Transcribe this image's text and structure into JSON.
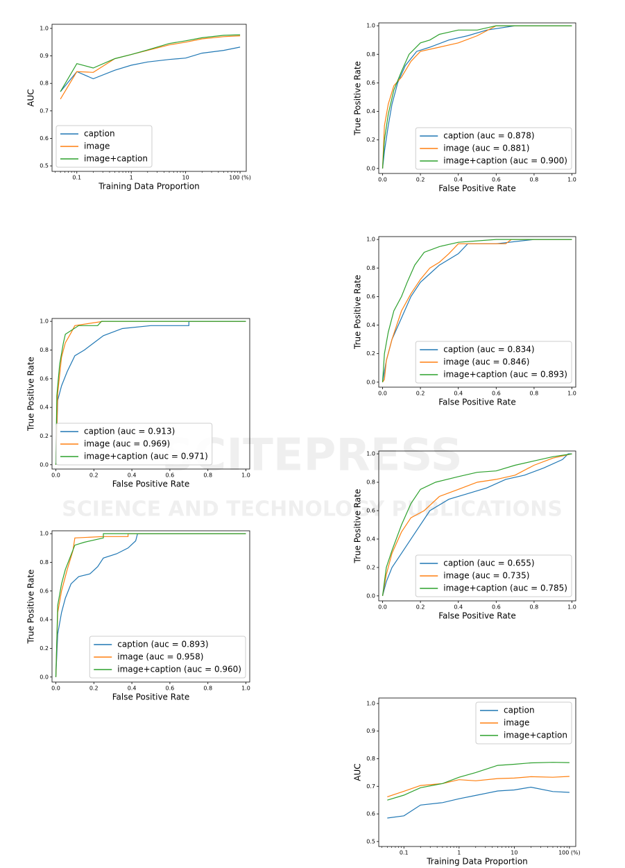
{
  "watermark": {
    "lines": [
      "SCITEPRESS",
      "SCIENCE AND TECHNOLOGY PUBLICATIONS"
    ]
  },
  "chart_data": [
    {
      "type": "line",
      "xscale": "log",
      "xlabel": "Training Data Proportion",
      "ylabel": "AUC",
      "legend": "lower left",
      "x": [
        0.05,
        0.1,
        0.2,
        0.5,
        1,
        2,
        5,
        10,
        20,
        50,
        100
      ],
      "xlim": [
        0.035,
        130
      ],
      "xticks": [
        0.1,
        1,
        10,
        {
          "value": 100,
          "label": "100 (%)"
        }
      ],
      "ylim": [
        0.48,
        1.015
      ],
      "yticks": [
        0.5,
        0.6,
        0.7,
        0.8,
        0.9,
        {
          "value": 1,
          "label": "1.0"
        }
      ],
      "series": [
        {
          "name": "caption",
          "color": "#1f77b4",
          "values": [
            0.77,
            0.843,
            0.817,
            0.848,
            0.866,
            0.878,
            0.887,
            0.892,
            0.91,
            0.92,
            0.932
          ]
        },
        {
          "name": "image",
          "color": "#ff7f0e",
          "values": [
            0.743,
            0.843,
            0.84,
            0.89,
            0.905,
            0.92,
            0.94,
            0.95,
            0.962,
            0.97,
            0.973
          ]
        },
        {
          "name": "image+caption",
          "color": "#2ca02c",
          "values": [
            0.77,
            0.872,
            0.856,
            0.89,
            0.905,
            0.922,
            0.945,
            0.955,
            0.966,
            0.975,
            0.977
          ]
        }
      ]
    },
    {
      "type": "roc",
      "xlabel": "False Positive Rate",
      "ylabel": "True Positive Rate",
      "legend": "lower right",
      "xlim": [
        -0.02,
        1.02
      ],
      "xticks": [
        {
          "value": 0,
          "label": "0.0"
        },
        0.2,
        0.4,
        0.6,
        0.8,
        {
          "value": 1,
          "label": "1.0"
        }
      ],
      "ylim": [
        -0.035,
        1.02
      ],
      "yticks": [
        {
          "value": 0,
          "label": "0.0"
        },
        0.2,
        0.4,
        0.6,
        0.8,
        {
          "value": 1,
          "label": "1.0"
        }
      ],
      "series": [
        {
          "name": "caption (auc = 0.878)",
          "color": "#1f77b4",
          "x": [
            0,
            0.01,
            0.03,
            0.05,
            0.08,
            0.12,
            0.18,
            0.25,
            0.35,
            0.45,
            0.55,
            0.7,
            1
          ],
          "values": [
            0,
            0.12,
            0.3,
            0.45,
            0.6,
            0.72,
            0.82,
            0.85,
            0.9,
            0.93,
            0.97,
            1,
            1
          ]
        },
        {
          "name": "image (auc = 0.881)",
          "color": "#ff7f0e",
          "x": [
            0,
            0.01,
            0.03,
            0.06,
            0.1,
            0.15,
            0.2,
            0.3,
            0.4,
            0.5,
            0.6,
            1
          ],
          "values": [
            0,
            0.3,
            0.45,
            0.58,
            0.64,
            0.75,
            0.82,
            0.85,
            0.88,
            0.93,
            1,
            1
          ]
        },
        {
          "name": "image+caption (auc = 0.900)",
          "color": "#2ca02c",
          "x": [
            0,
            0.01,
            0.03,
            0.06,
            0.1,
            0.14,
            0.2,
            0.25,
            0.3,
            0.4,
            0.5,
            0.6,
            1
          ],
          "values": [
            0,
            0.2,
            0.38,
            0.55,
            0.68,
            0.8,
            0.88,
            0.9,
            0.94,
            0.97,
            0.97,
            1,
            1
          ]
        }
      ]
    },
    {
      "type": "roc",
      "xlabel": "False Positive Rate",
      "ylabel": "True Positive Rate",
      "legend": "lower right",
      "xlim": [
        -0.02,
        1.02
      ],
      "xticks": [
        {
          "value": 0,
          "label": "0.0"
        },
        0.2,
        0.4,
        0.6,
        0.8,
        {
          "value": 1,
          "label": "1.0"
        }
      ],
      "ylim": [
        -0.035,
        1.02
      ],
      "yticks": [
        {
          "value": 0,
          "label": "0.0"
        },
        0.2,
        0.4,
        0.6,
        0.8,
        {
          "value": 1,
          "label": "1.0"
        }
      ],
      "series": [
        {
          "name": "caption (auc = 0.834)",
          "color": "#1f77b4",
          "x": [
            0,
            0.02,
            0.05,
            0.1,
            0.15,
            0.2,
            0.25,
            0.3,
            0.4,
            0.45,
            0.6,
            0.8,
            1
          ],
          "values": [
            0,
            0.15,
            0.3,
            0.45,
            0.6,
            0.7,
            0.76,
            0.82,
            0.9,
            0.97,
            0.97,
            1,
            1
          ]
        },
        {
          "name": "image (auc = 0.846)",
          "color": "#ff7f0e",
          "x": [
            0,
            0.01,
            0.02,
            0.05,
            0.1,
            0.15,
            0.2,
            0.25,
            0.3,
            0.35,
            0.4,
            0.65,
            0.68,
            1
          ],
          "values": [
            0,
            0.02,
            0.15,
            0.3,
            0.5,
            0.62,
            0.72,
            0.8,
            0.84,
            0.9,
            0.97,
            0.97,
            1,
            1
          ]
        },
        {
          "name": "image+caption (auc = 0.893)",
          "color": "#2ca02c",
          "x": [
            0,
            0.01,
            0.03,
            0.06,
            0.1,
            0.13,
            0.17,
            0.22,
            0.3,
            0.4,
            0.6,
            1
          ],
          "values": [
            0,
            0.2,
            0.35,
            0.5,
            0.6,
            0.7,
            0.82,
            0.91,
            0.95,
            0.98,
            1,
            1
          ]
        }
      ]
    },
    {
      "type": "roc",
      "xlabel": "False Positive Rate",
      "ylabel": "True Positive Rate",
      "legend": "lower right",
      "xlim": [
        -0.02,
        1.02
      ],
      "xticks": [
        {
          "value": 0,
          "label": "0.0"
        },
        0.2,
        0.4,
        0.6,
        0.8,
        {
          "value": 1,
          "label": "1.0"
        }
      ],
      "ylim": [
        -0.035,
        1.02
      ],
      "yticks": [
        {
          "value": 0,
          "label": "0.0"
        },
        0.2,
        0.4,
        0.6,
        0.8,
        {
          "value": 1,
          "label": "1.0"
        }
      ],
      "series": [
        {
          "name": "caption (auc = 0.655)",
          "color": "#1f77b4",
          "x": [
            0,
            0.02,
            0.05,
            0.1,
            0.15,
            0.25,
            0.35,
            0.45,
            0.55,
            0.65,
            0.75,
            0.85,
            0.95,
            0.98,
            1
          ],
          "values": [
            0,
            0.1,
            0.2,
            0.3,
            0.4,
            0.6,
            0.68,
            0.72,
            0.76,
            0.82,
            0.85,
            0.9,
            0.96,
            1,
            1
          ]
        },
        {
          "name": "image (auc = 0.735)",
          "color": "#ff7f0e",
          "x": [
            0,
            0.02,
            0.05,
            0.1,
            0.15,
            0.22,
            0.3,
            0.4,
            0.5,
            0.6,
            0.7,
            0.8,
            0.9,
            1
          ],
          "values": [
            0,
            0.15,
            0.3,
            0.45,
            0.55,
            0.6,
            0.7,
            0.75,
            0.8,
            0.82,
            0.85,
            0.92,
            0.97,
            1
          ]
        },
        {
          "name": "image+caption (auc = 0.785)",
          "color": "#2ca02c",
          "x": [
            0,
            0.02,
            0.05,
            0.1,
            0.15,
            0.2,
            0.28,
            0.4,
            0.5,
            0.6,
            0.7,
            0.8,
            0.9,
            1
          ],
          "values": [
            0,
            0.2,
            0.32,
            0.5,
            0.65,
            0.75,
            0.8,
            0.84,
            0.87,
            0.88,
            0.92,
            0.95,
            0.98,
            1
          ]
        }
      ]
    },
    {
      "type": "roc",
      "xlabel": "False Positive Rate",
      "ylabel": "True Positive Rate",
      "legend": "lower left",
      "xlim": [
        -0.02,
        1.02
      ],
      "xticks": [
        {
          "value": 0,
          "label": "0.0"
        },
        0.2,
        0.4,
        0.6,
        0.8,
        {
          "value": 1,
          "label": "1.0"
        }
      ],
      "ylim": [
        -0.03,
        1.02
      ],
      "yticks": [
        {
          "value": 0,
          "label": "0.0"
        },
        0.2,
        0.4,
        0.6,
        0.8,
        {
          "value": 1,
          "label": "1.0"
        }
      ],
      "series": [
        {
          "name": "caption (auc = 0.913)",
          "color": "#1f77b4",
          "x": [
            0,
            0.01,
            0.03,
            0.06,
            0.1,
            0.15,
            0.2,
            0.25,
            0.35,
            0.5,
            0.7,
            0.7,
            1
          ],
          "values": [
            0,
            0.45,
            0.55,
            0.65,
            0.76,
            0.8,
            0.85,
            0.9,
            0.95,
            0.97,
            0.97,
            1,
            1
          ]
        },
        {
          "name": "image (auc = 0.969)",
          "color": "#ff7f0e",
          "x": [
            0,
            0.01,
            0.03,
            0.05,
            0.08,
            0.1,
            0.25,
            1
          ],
          "values": [
            0,
            0.5,
            0.75,
            0.85,
            0.92,
            0.97,
            1,
            1
          ]
        },
        {
          "name": "image+caption (auc = 0.971)",
          "color": "#2ca02c",
          "x": [
            0,
            0.005,
            0.02,
            0.04,
            0.05,
            0.12,
            0.22,
            0.24,
            1
          ],
          "values": [
            0,
            0.48,
            0.7,
            0.85,
            0.91,
            0.97,
            0.97,
            1,
            1
          ]
        }
      ]
    },
    {
      "type": "roc",
      "xlabel": "False Positive Rate",
      "ylabel": "True Positive Rate",
      "legend": "lower right",
      "xlim": [
        -0.02,
        1.02
      ],
      "xticks": [
        {
          "value": 0,
          "label": "0.0"
        },
        0.2,
        0.4,
        0.6,
        0.8,
        {
          "value": 1,
          "label": "1.0"
        }
      ],
      "ylim": [
        -0.035,
        1.02
      ],
      "yticks": [
        {
          "value": 0,
          "label": "0.0"
        },
        0.2,
        0.4,
        0.6,
        0.8,
        {
          "value": 1,
          "label": "1.0"
        }
      ],
      "series": [
        {
          "name": "caption (auc = 0.893)",
          "color": "#1f77b4",
          "x": [
            0,
            0.01,
            0.03,
            0.05,
            0.08,
            0.12,
            0.18,
            0.22,
            0.25,
            0.32,
            0.38,
            0.42,
            0.43,
            1
          ],
          "values": [
            0,
            0.3,
            0.45,
            0.55,
            0.65,
            0.7,
            0.72,
            0.77,
            0.83,
            0.86,
            0.9,
            0.95,
            1,
            1
          ]
        },
        {
          "name": "image (auc = 0.958)",
          "color": "#ff7f0e",
          "x": [
            0,
            0.01,
            0.03,
            0.06,
            0.09,
            0.1,
            0.25,
            0.38,
            0.38,
            1
          ],
          "values": [
            0,
            0.45,
            0.6,
            0.75,
            0.88,
            0.97,
            0.98,
            0.98,
            1,
            1
          ]
        },
        {
          "name": "image+caption (auc = 0.960)",
          "color": "#2ca02c",
          "x": [
            0,
            0.01,
            0.03,
            0.05,
            0.1,
            0.15,
            0.25,
            0.25,
            1
          ],
          "values": [
            0,
            0.5,
            0.65,
            0.75,
            0.92,
            0.94,
            0.97,
            1,
            1
          ]
        }
      ]
    },
    {
      "type": "line",
      "xscale": "log",
      "xlabel": "Training Data Proportion",
      "ylabel": "AUC",
      "legend": "upper right",
      "x": [
        0.05,
        0.1,
        0.2,
        0.5,
        1,
        2,
        5,
        10,
        20,
        50,
        100
      ],
      "xlim": [
        0.035,
        130
      ],
      "xticks": [
        0.1,
        1,
        10,
        {
          "value": 100,
          "label": "100 (%)"
        }
      ],
      "ylim": [
        0.482,
        1.02
      ],
      "yticks": [
        0.5,
        0.6,
        0.7,
        0.8,
        0.9,
        {
          "value": 1,
          "label": "1.0"
        }
      ],
      "series": [
        {
          "name": "caption",
          "color": "#1f77b4",
          "values": [
            0.585,
            0.593,
            0.632,
            0.641,
            0.655,
            0.667,
            0.683,
            0.687,
            0.697,
            0.681,
            0.678
          ]
        },
        {
          "name": "image",
          "color": "#ff7f0e",
          "values": [
            0.662,
            0.682,
            0.703,
            0.71,
            0.724,
            0.72,
            0.728,
            0.73,
            0.735,
            0.733,
            0.736
          ]
        },
        {
          "name": "image+caption",
          "color": "#2ca02c",
          "values": [
            0.65,
            0.668,
            0.695,
            0.71,
            0.733,
            0.75,
            0.776,
            0.78,
            0.785,
            0.787,
            0.786
          ]
        }
      ]
    }
  ]
}
